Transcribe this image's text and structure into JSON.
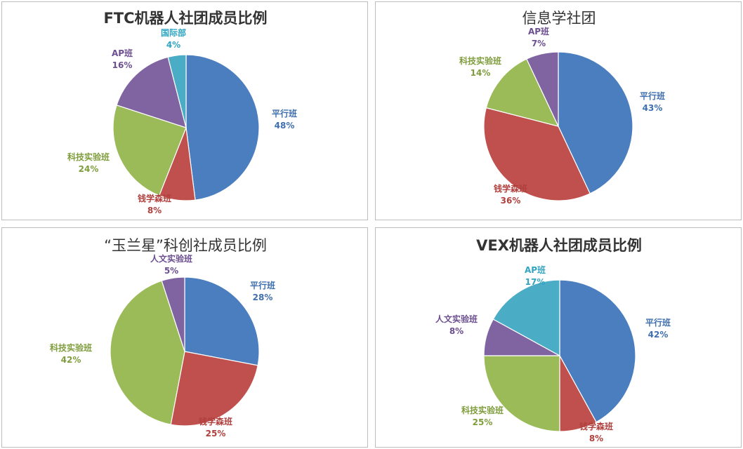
{
  "chart_data": [
    {
      "type": "pie",
      "title": "FTC机器人社团成员比例",
      "slices": [
        {
          "label": "平行班",
          "value": 48,
          "pct": "48%",
          "color": "#4a7ebf"
        },
        {
          "label": "钱学森班",
          "value": 8,
          "pct": "8%",
          "color": "#c0504d"
        },
        {
          "label": "科技实验班",
          "value": 24,
          "pct": "24%",
          "color": "#9bbb59"
        },
        {
          "label": "AP班",
          "value": 16,
          "pct": "16%",
          "color": "#8064a2"
        },
        {
          "label": "国际部",
          "value": 4,
          "pct": "4%",
          "color": "#4bacc6"
        }
      ]
    },
    {
      "type": "pie",
      "title": "信息学社团",
      "slices": [
        {
          "label": "平行班",
          "value": 43,
          "pct": "43%",
          "color": "#4a7ebf"
        },
        {
          "label": "钱学森班",
          "value": 36,
          "pct": "36%",
          "color": "#c0504d"
        },
        {
          "label": "科技实验班",
          "value": 14,
          "pct": "14%",
          "color": "#9bbb59"
        },
        {
          "label": "AP班",
          "value": 7,
          "pct": "7%",
          "color": "#8064a2"
        }
      ]
    },
    {
      "type": "pie",
      "title": "“玉兰星”科创社成员比例",
      "slices": [
        {
          "label": "平行班",
          "value": 28,
          "pct": "28%",
          "color": "#4a7ebf"
        },
        {
          "label": "钱学森班",
          "value": 25,
          "pct": "25%",
          "color": "#c0504d"
        },
        {
          "label": "科技实验班",
          "value": 42,
          "pct": "42%",
          "color": "#9bbb59"
        },
        {
          "label": "人文实验班",
          "value": 5,
          "pct": "5%",
          "color": "#8064a2"
        }
      ]
    },
    {
      "type": "pie",
      "title": "VEX机器人社团成员比例",
      "slices": [
        {
          "label": "平行班",
          "value": 42,
          "pct": "42%",
          "color": "#4a7ebf"
        },
        {
          "label": "钱学森班",
          "value": 8,
          "pct": "8%",
          "color": "#c0504d"
        },
        {
          "label": "科技实验班",
          "value": 25,
          "pct": "25%",
          "color": "#9bbb59"
        },
        {
          "label": "人文实验班",
          "value": 8,
          "pct": "8%",
          "color": "#8064a2"
        },
        {
          "label": "AP班",
          "value": 17,
          "pct": "17%",
          "color": "#4bacc6"
        }
      ]
    }
  ]
}
